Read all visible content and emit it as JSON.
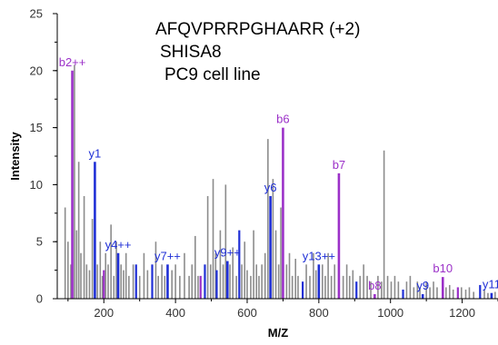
{
  "title_lines": [
    "AFQVPRRPGHAARR (+2)",
    "SHISA8",
    "PC9 cell line"
  ],
  "colors": {
    "background_peak": "#8c8c8c",
    "b_ion": "#9b30c8",
    "y_ion": "#1f2fd6",
    "axis": "#000000"
  },
  "chart_data": {
    "type": "bar",
    "xlabel": "M/Z",
    "ylabel": "Intensity",
    "xlim": [
      70,
      1300
    ],
    "ylim": [
      0,
      25
    ],
    "xticks": [
      200,
      400,
      600,
      800,
      1000,
      1200
    ],
    "yticks": [
      0,
      5,
      10,
      15,
      20,
      25
    ],
    "grid": false,
    "annotated_peaks": [
      {
        "label": "b2++",
        "ion": "b",
        "mz": 112,
        "intensity": 20
      },
      {
        "label": "y1",
        "ion": "y",
        "mz": 175,
        "intensity": 12
      },
      {
        "label": "y4++",
        "ion": "y",
        "mz": 240,
        "intensity": 4
      },
      {
        "label": "y7++",
        "ion": "y",
        "mz": 378,
        "intensity": 3
      },
      {
        "label": "y9++",
        "ion": "y",
        "mz": 545,
        "intensity": 3.3
      },
      {
        "label": "y6",
        "ion": "y",
        "mz": 665,
        "intensity": 9
      },
      {
        "label": "b6",
        "ion": "b",
        "mz": 700,
        "intensity": 15
      },
      {
        "label": "y13++",
        "ion": "y",
        "mz": 800,
        "intensity": 3
      },
      {
        "label": "b7",
        "ion": "b",
        "mz": 856,
        "intensity": 11
      },
      {
        "label": "b8",
        "ion": "b",
        "mz": 956,
        "intensity": 0.4
      },
      {
        "label": "y9",
        "ion": "y",
        "mz": 1090,
        "intensity": 0.4
      },
      {
        "label": "b10",
        "ion": "b",
        "mz": 1146,
        "intensity": 1.9
      },
      {
        "label": "y11",
        "ion": "y",
        "mz": 1282,
        "intensity": 0.5
      }
    ],
    "other_y_peaks": [
      {
        "mz": 290,
        "intensity": 3
      },
      {
        "mz": 335,
        "intensity": 3
      },
      {
        "mz": 482,
        "intensity": 3
      },
      {
        "mz": 515,
        "intensity": 2.5
      },
      {
        "mz": 578,
        "intensity": 6
      },
      {
        "mz": 755,
        "intensity": 1.5
      },
      {
        "mz": 905,
        "intensity": 1.5
      },
      {
        "mz": 1035,
        "intensity": 0.8
      },
      {
        "mz": 1250,
        "intensity": 1.2
      }
    ],
    "other_b_peaks": [
      {
        "mz": 200,
        "intensity": 2.5
      },
      {
        "mz": 470,
        "intensity": 2
      },
      {
        "mz": 1188,
        "intensity": 1
      }
    ],
    "background_peaks": [
      {
        "mz": 92,
        "intensity": 8
      },
      {
        "mz": 100,
        "intensity": 5
      },
      {
        "mz": 108,
        "intensity": 3
      },
      {
        "mz": 118,
        "intensity": 20.5
      },
      {
        "mz": 124,
        "intensity": 6
      },
      {
        "mz": 130,
        "intensity": 12
      },
      {
        "mz": 136,
        "intensity": 4
      },
      {
        "mz": 145,
        "intensity": 9
      },
      {
        "mz": 152,
        "intensity": 3
      },
      {
        "mz": 160,
        "intensity": 2.5
      },
      {
        "mz": 168,
        "intensity": 7
      },
      {
        "mz": 182,
        "intensity": 3
      },
      {
        "mz": 190,
        "intensity": 5
      },
      {
        "mz": 196,
        "intensity": 2
      },
      {
        "mz": 205,
        "intensity": 4
      },
      {
        "mz": 212,
        "intensity": 3
      },
      {
        "mz": 220,
        "intensity": 6.5
      },
      {
        "mz": 228,
        "intensity": 2
      },
      {
        "mz": 235,
        "intensity": 5
      },
      {
        "mz": 248,
        "intensity": 3
      },
      {
        "mz": 255,
        "intensity": 2.5
      },
      {
        "mz": 262,
        "intensity": 4
      },
      {
        "mz": 270,
        "intensity": 2
      },
      {
        "mz": 282,
        "intensity": 3
      },
      {
        "mz": 300,
        "intensity": 2
      },
      {
        "mz": 312,
        "intensity": 4
      },
      {
        "mz": 322,
        "intensity": 2.5
      },
      {
        "mz": 345,
        "intensity": 5
      },
      {
        "mz": 352,
        "intensity": 2
      },
      {
        "mz": 362,
        "intensity": 3
      },
      {
        "mz": 370,
        "intensity": 2
      },
      {
        "mz": 390,
        "intensity": 2.5
      },
      {
        "mz": 400,
        "intensity": 3
      },
      {
        "mz": 412,
        "intensity": 2
      },
      {
        "mz": 425,
        "intensity": 4
      },
      {
        "mz": 438,
        "intensity": 2
      },
      {
        "mz": 446,
        "intensity": 3
      },
      {
        "mz": 455,
        "intensity": 5.5
      },
      {
        "mz": 463,
        "intensity": 2
      },
      {
        "mz": 490,
        "intensity": 9
      },
      {
        "mz": 498,
        "intensity": 3
      },
      {
        "mz": 505,
        "intensity": 10.5
      },
      {
        "mz": 512,
        "intensity": 4
      },
      {
        "mz": 525,
        "intensity": 6
      },
      {
        "mz": 533,
        "intensity": 3
      },
      {
        "mz": 540,
        "intensity": 10
      },
      {
        "mz": 552,
        "intensity": 3
      },
      {
        "mz": 560,
        "intensity": 4.5
      },
      {
        "mz": 570,
        "intensity": 2
      },
      {
        "mz": 585,
        "intensity": 3
      },
      {
        "mz": 593,
        "intensity": 5
      },
      {
        "mz": 600,
        "intensity": 2.5
      },
      {
        "mz": 610,
        "intensity": 2
      },
      {
        "mz": 618,
        "intensity": 6
      },
      {
        "mz": 626,
        "intensity": 3
      },
      {
        "mz": 633,
        "intensity": 2
      },
      {
        "mz": 641,
        "intensity": 3
      },
      {
        "mz": 650,
        "intensity": 4
      },
      {
        "mz": 658,
        "intensity": 14
      },
      {
        "mz": 672,
        "intensity": 10.5
      },
      {
        "mz": 680,
        "intensity": 6
      },
      {
        "mz": 688,
        "intensity": 3
      },
      {
        "mz": 694,
        "intensity": 8
      },
      {
        "mz": 710,
        "intensity": 3
      },
      {
        "mz": 718,
        "intensity": 4
      },
      {
        "mz": 726,
        "intensity": 2
      },
      {
        "mz": 735,
        "intensity": 3.5
      },
      {
        "mz": 742,
        "intensity": 2
      },
      {
        "mz": 765,
        "intensity": 3
      },
      {
        "mz": 775,
        "intensity": 2
      },
      {
        "mz": 785,
        "intensity": 4
      },
      {
        "mz": 792,
        "intensity": 2.5
      },
      {
        "mz": 810,
        "intensity": 3
      },
      {
        "mz": 818,
        "intensity": 2
      },
      {
        "mz": 826,
        "intensity": 4
      },
      {
        "mz": 835,
        "intensity": 2
      },
      {
        "mz": 844,
        "intensity": 3
      },
      {
        "mz": 868,
        "intensity": 2
      },
      {
        "mz": 878,
        "intensity": 3
      },
      {
        "mz": 886,
        "intensity": 2
      },
      {
        "mz": 895,
        "intensity": 2.5
      },
      {
        "mz": 915,
        "intensity": 2
      },
      {
        "mz": 925,
        "intensity": 3
      },
      {
        "mz": 935,
        "intensity": 2
      },
      {
        "mz": 945,
        "intensity": 1.5
      },
      {
        "mz": 965,
        "intensity": 2
      },
      {
        "mz": 975,
        "intensity": 1.5
      },
      {
        "mz": 982,
        "intensity": 13
      },
      {
        "mz": 992,
        "intensity": 2
      },
      {
        "mz": 1002,
        "intensity": 1.5
      },
      {
        "mz": 1012,
        "intensity": 2
      },
      {
        "mz": 1022,
        "intensity": 1.5
      },
      {
        "mz": 1045,
        "intensity": 1.5
      },
      {
        "mz": 1055,
        "intensity": 2
      },
      {
        "mz": 1065,
        "intensity": 1
      },
      {
        "mz": 1075,
        "intensity": 1.5
      },
      {
        "mz": 1082,
        "intensity": 1
      },
      {
        "mz": 1100,
        "intensity": 1.5
      },
      {
        "mz": 1110,
        "intensity": 1
      },
      {
        "mz": 1120,
        "intensity": 1.5
      },
      {
        "mz": 1130,
        "intensity": 1
      },
      {
        "mz": 1155,
        "intensity": 1
      },
      {
        "mz": 1165,
        "intensity": 1.2
      },
      {
        "mz": 1175,
        "intensity": 0.8
      },
      {
        "mz": 1198,
        "intensity": 1
      },
      {
        "mz": 1210,
        "intensity": 0.8
      },
      {
        "mz": 1220,
        "intensity": 1
      },
      {
        "mz": 1232,
        "intensity": 0.6
      },
      {
        "mz": 1262,
        "intensity": 0.8
      },
      {
        "mz": 1272,
        "intensity": 0.5
      },
      {
        "mz": 1292,
        "intensity": 0.6
      }
    ]
  }
}
